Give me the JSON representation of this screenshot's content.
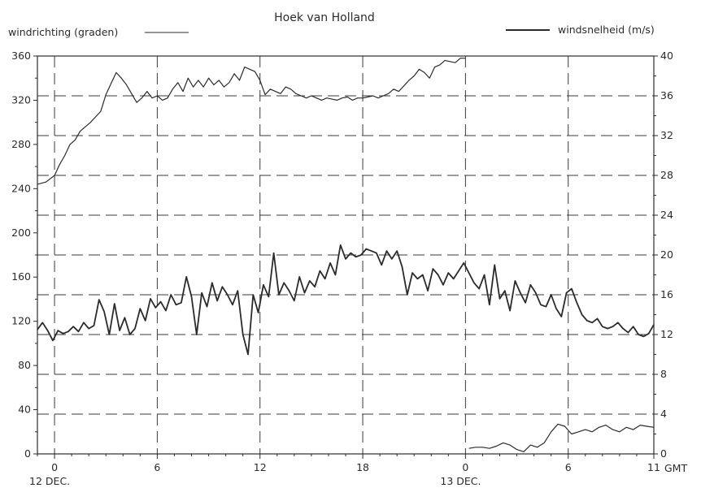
{
  "chart_data": {
    "type": "line",
    "title": "Hoek van Holland",
    "left_axis": {
      "label": "windrichting (graden)",
      "range": [
        0,
        360
      ],
      "ticks": [
        0,
        40,
        80,
        120,
        160,
        200,
        240,
        280,
        320,
        360
      ],
      "tick_labels": [
        "0",
        "40",
        "80",
        "120",
        "160",
        "200",
        "240",
        "280",
        "320",
        "360"
      ]
    },
    "right_axis": {
      "label": "windsnelheid (m/s)",
      "range": [
        0,
        40
      ],
      "ticks": [
        0,
        4,
        8,
        12,
        16,
        20,
        24,
        28,
        32,
        36,
        40
      ],
      "tick_labels": [
        "0",
        "4",
        "8",
        "12",
        "16",
        "20",
        "24",
        "28",
        "32",
        "36",
        "40"
      ]
    },
    "x_axis": {
      "unit": "GMT",
      "unit_label": "GMT",
      "range_hours": [
        -1,
        35
      ],
      "ticks_hours": [
        0,
        6,
        12,
        18,
        24,
        30,
        35
      ],
      "tick_labels": [
        "0",
        "6",
        "12",
        "18",
        "0",
        "6",
        "11"
      ],
      "day_labels": [
        {
          "hour": 0,
          "text": "12 DEC."
        },
        {
          "hour": 24,
          "text": "13 DEC."
        }
      ]
    },
    "grid": "dashed",
    "series": [
      {
        "name": "windrichting (graden)",
        "axis": "left",
        "color": "#2b2b2b",
        "x": [
          -1,
          -0.5,
          0,
          0.3,
          0.6,
          0.9,
          1.2,
          1.5,
          1.8,
          2.1,
          2.4,
          2.7,
          3.0,
          3.3,
          3.6,
          3.9,
          4.2,
          4.5,
          4.8,
          5.1,
          5.4,
          5.7,
          6.0,
          6.3,
          6.6,
          6.9,
          7.2,
          7.5,
          7.8,
          8.1,
          8.4,
          8.7,
          9.0,
          9.3,
          9.6,
          9.9,
          10.2,
          10.5,
          10.8,
          11.1,
          11.4,
          11.7,
          12.0,
          12.3,
          12.6,
          12.9,
          13.2,
          13.5,
          13.8,
          14.1,
          14.4,
          14.7,
          15.0,
          15.3,
          15.6,
          15.9,
          16.2,
          16.5,
          16.8,
          17.1,
          17.4,
          17.7,
          18.0,
          18.3,
          18.6,
          18.9,
          19.2,
          19.5,
          19.8,
          20.1,
          20.4,
          20.7,
          21.0,
          21.3,
          21.6,
          21.9,
          22.2,
          22.5,
          22.8,
          23.1,
          23.4,
          23.7,
          24.0
        ],
        "y": [
          244,
          246,
          252,
          262,
          270,
          280,
          284,
          292,
          296,
          300,
          305,
          310,
          325,
          335,
          345,
          340,
          334,
          326,
          318,
          322,
          328,
          322,
          324,
          320,
          322,
          330,
          336,
          328,
          340,
          332,
          338,
          332,
          340,
          334,
          338,
          332,
          336,
          344,
          338,
          350,
          348,
          346,
          338,
          325,
          330,
          328,
          326,
          332,
          330,
          326,
          324,
          322,
          324,
          322,
          320,
          322,
          321,
          320,
          322,
          323,
          320,
          322,
          322,
          323,
          324,
          322,
          324,
          326,
          330,
          328,
          333,
          338,
          342,
          348,
          345,
          340,
          350,
          352,
          356,
          355,
          354,
          358,
          358
        ]
      },
      {
        "name": "windrichting (graden)",
        "axis": "left",
        "color": "#2b2b2b",
        "x": [
          24.2,
          24.6,
          25.0,
          25.4,
          25.8,
          26.2,
          26.6,
          27.0,
          27.4,
          27.8,
          28.2,
          28.6,
          29.0,
          29.4,
          29.8,
          30.2,
          30.6,
          31.0,
          31.4,
          31.8,
          32.2,
          32.6,
          33.0,
          33.4,
          33.8,
          34.2,
          34.6,
          35.0
        ],
        "y": [
          5,
          6,
          6,
          5,
          7,
          10,
          8,
          4,
          2,
          8,
          6,
          10,
          20,
          27,
          25,
          18,
          20,
          22,
          20,
          24,
          26,
          22,
          20,
          24,
          22,
          26,
          25,
          24
        ]
      },
      {
        "name": "windsnelheid (m/s)",
        "axis": "right",
        "color": "#2b2b2b",
        "x": [
          -1,
          -0.7,
          -0.4,
          -0.1,
          0.2,
          0.5,
          0.8,
          1.1,
          1.4,
          1.7,
          2.0,
          2.3,
          2.6,
          2.9,
          3.2,
          3.5,
          3.8,
          4.1,
          4.4,
          4.7,
          5.0,
          5.3,
          5.6,
          5.9,
          6.2,
          6.5,
          6.8,
          7.1,
          7.4,
          7.7,
          8.0,
          8.3,
          8.6,
          8.9,
          9.2,
          9.5,
          9.8,
          10.1,
          10.4,
          10.7,
          11.0,
          11.3,
          11.6,
          11.9,
          12.2,
          12.5,
          12.8,
          13.1,
          13.4,
          13.7,
          14.0,
          14.3,
          14.6,
          14.9,
          15.2,
          15.5,
          15.8,
          16.1,
          16.4,
          16.7,
          17.0,
          17.3,
          17.6,
          17.9,
          18.2,
          18.5,
          18.8,
          19.1,
          19.4,
          19.7,
          20.0,
          20.3,
          20.6,
          20.9,
          21.2,
          21.5,
          21.8,
          22.1,
          22.4,
          22.7,
          23.0,
          23.3,
          23.6,
          23.9,
          24.2,
          24.5,
          24.8,
          25.1,
          25.4,
          25.7,
          26.0,
          26.3,
          26.6,
          26.9,
          27.2,
          27.5,
          27.8,
          28.1,
          28.4,
          28.7,
          29.0,
          29.3,
          29.6,
          29.9,
          30.2,
          30.5,
          30.8,
          31.1,
          31.4,
          31.7,
          32.0,
          32.3,
          32.6,
          32.9,
          33.2,
          33.5,
          33.8,
          34.1,
          34.4,
          34.7,
          35.0
        ],
        "y": [
          12.5,
          13.2,
          12.4,
          11.4,
          12.4,
          12.1,
          12.3,
          12.8,
          12.3,
          13.2,
          12.6,
          12.9,
          15.5,
          14.3,
          12.0,
          15.1,
          12.4,
          13.7,
          12.0,
          12.6,
          14.6,
          13.4,
          15.6,
          14.7,
          15.3,
          14.4,
          16.0,
          15.0,
          15.2,
          17.8,
          15.8,
          12.0,
          16.2,
          14.8,
          17.2,
          15.4,
          16.8,
          16.0,
          15.0,
          16.4,
          12.0,
          10.0,
          16.0,
          14.2,
          17.0,
          15.8,
          20.2,
          16.0,
          17.2,
          16.4,
          15.4,
          17.8,
          16.2,
          17.4,
          16.8,
          18.4,
          17.6,
          19.2,
          18.0,
          21.0,
          19.6,
          20.2,
          19.8,
          20.0,
          20.6,
          20.4,
          20.2,
          19.0,
          20.4,
          19.6,
          20.4,
          18.8,
          16.0,
          18.2,
          17.6,
          18.0,
          16.4,
          18.6,
          18.0,
          17.0,
          18.2,
          17.6,
          18.4,
          19.2,
          18.2,
          17.2,
          16.6,
          18.0,
          15.0,
          19.0,
          15.6,
          16.4,
          14.4,
          17.4,
          16.2,
          15.2,
          17.0,
          16.2,
          15.0,
          14.8,
          16.0,
          14.6,
          13.8,
          16.2,
          16.6,
          15.2,
          14.0,
          13.4,
          13.2,
          13.6,
          12.8,
          12.6,
          12.8,
          13.2,
          12.6,
          12.2,
          12.8,
          12.0,
          11.8,
          12.1,
          13.0
        ]
      }
    ]
  }
}
